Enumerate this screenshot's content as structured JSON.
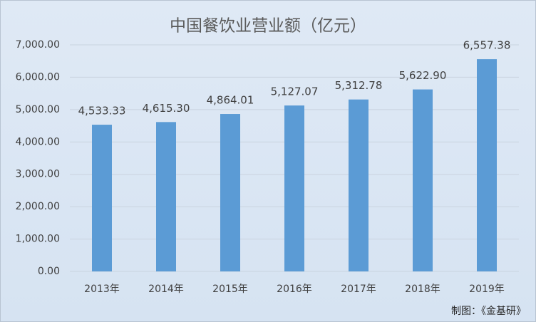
{
  "chart_data": {
    "type": "bar",
    "title": "中国餐饮业营业额（亿元）",
    "categories": [
      "2013年",
      "2014年",
      "2015年",
      "2016年",
      "2017年",
      "2018年",
      "2019年"
    ],
    "values": [
      4533.33,
      4615.3,
      4864.01,
      5127.07,
      5312.78,
      5622.9,
      6557.38
    ],
    "value_labels": [
      "4,533.33",
      "4,615.30",
      "4,864.01",
      "5,127.07",
      "5,312.78",
      "5,622.90",
      "6,557.38"
    ],
    "color": "#5b9bd5",
    "ylim": [
      0,
      7000
    ],
    "yticks": [
      {
        "value": 0,
        "label": "0.00"
      },
      {
        "value": 1000,
        "label": "1,000.00"
      },
      {
        "value": 2000,
        "label": "2,000.00"
      },
      {
        "value": 3000,
        "label": "3,000.00"
      },
      {
        "value": 4000,
        "label": "4,000.00"
      },
      {
        "value": 5000,
        "label": "5,000.00"
      },
      {
        "value": 6000,
        "label": "6,000.00"
      },
      {
        "value": 7000,
        "label": "7,000.00"
      }
    ],
    "grid": true,
    "source": "制图：《金基研》"
  }
}
